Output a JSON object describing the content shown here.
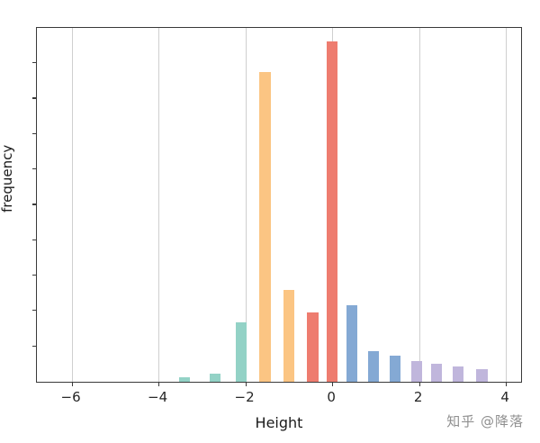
{
  "watermark": "知乎 @降落",
  "chart_data": {
    "type": "bar",
    "title": "",
    "xlabel": "Height",
    "ylabel": "frequency",
    "xlim": [
      -6.8,
      4.35
    ],
    "ylim": [
      0,
      1.04
    ],
    "grid": "vertical",
    "legend": "none",
    "x_ticks": [
      -6,
      -4,
      -2,
      0,
      2,
      4
    ],
    "x_tick_labels": [
      "−6",
      "−4",
      "−2",
      "0",
      "2",
      "4"
    ],
    "y_tick_count": 9,
    "bar_width_units": 0.26,
    "colors": {
      "teal": "#93d2c6",
      "orange": "#fbc583",
      "red": "#ee7c6f",
      "blue": "#84a9d4",
      "purple": "#c0b6dc",
      "grid": "#cfcfcf"
    },
    "bars": [
      {
        "x": -3.4,
        "height": 0.012,
        "color": "teal"
      },
      {
        "x": -2.7,
        "height": 0.025,
        "color": "teal"
      },
      {
        "x": -2.1,
        "height": 0.175,
        "color": "teal"
      },
      {
        "x": -1.55,
        "height": 0.91,
        "color": "orange"
      },
      {
        "x": -1.0,
        "height": 0.27,
        "color": "orange"
      },
      {
        "x": -0.45,
        "height": 0.205,
        "color": "red"
      },
      {
        "x": 0.0,
        "height": 1.0,
        "color": "red"
      },
      {
        "x": 0.45,
        "height": 0.225,
        "color": "blue"
      },
      {
        "x": 0.95,
        "height": 0.09,
        "color": "blue"
      },
      {
        "x": 1.45,
        "height": 0.078,
        "color": "blue"
      },
      {
        "x": 1.95,
        "height": 0.062,
        "color": "purple"
      },
      {
        "x": 2.4,
        "height": 0.052,
        "color": "purple"
      },
      {
        "x": 2.9,
        "height": 0.044,
        "color": "purple"
      },
      {
        "x": 3.45,
        "height": 0.036,
        "color": "purple"
      }
    ]
  }
}
